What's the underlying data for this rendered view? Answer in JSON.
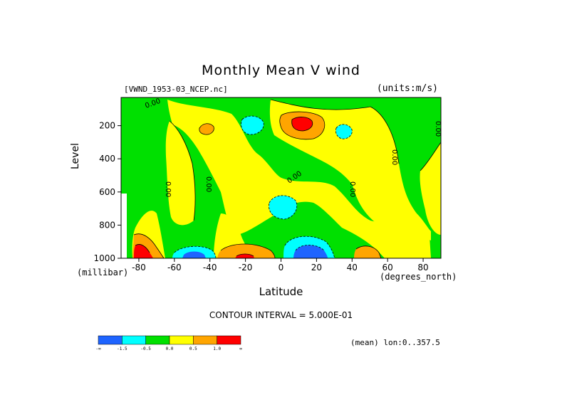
{
  "chart_data": {
    "type": "heatmap",
    "title": "Monthly Mean V wind",
    "dataset": "[VWND_1953-03_NCEP.nc]",
    "units": "(units:m/s)",
    "xlabel": "Latitude",
    "x_unit": "(degrees_north)",
    "ylabel": "Level",
    "y_unit": "(millibar)",
    "xlim": [
      -90,
      90
    ],
    "ylim": [
      1000,
      30
    ],
    "x_ticks": [
      -80,
      -60,
      -40,
      -20,
      0,
      20,
      40,
      60,
      80
    ],
    "y_ticks": [
      200,
      400,
      600,
      800,
      1000
    ],
    "contour_interval": "CONTOUR INTERVAL = 5.000E-01",
    "mean_note": "(mean) lon:0..357.5",
    "contour_label": "0.00",
    "colorbar": {
      "colors": [
        "#1e64ff",
        "#00ffff",
        "#00e000",
        "#ffff00",
        "#ffa500",
        "#ff0000"
      ],
      "labels": [
        "-∞",
        "-1.5",
        "-0.5",
        "0.0",
        "0.5",
        "1.0",
        "∞"
      ]
    },
    "features": [
      {
        "lat": 12,
        "level": 155,
        "value": 1.3,
        "sign": "positive"
      },
      {
        "lat": -40,
        "level": 180,
        "value": 0.7,
        "sign": "positive"
      },
      {
        "lat": -20,
        "level": 170,
        "value": -0.8,
        "sign": "negative"
      },
      {
        "lat": 28,
        "level": 185,
        "value": -0.8,
        "sign": "negative"
      },
      {
        "lat": 5,
        "level": 640,
        "value": -0.9,
        "sign": "negative"
      },
      {
        "lat": 12,
        "level": 960,
        "value": -2.0,
        "sign": "negative"
      },
      {
        "lat": -45,
        "level": 965,
        "value": -1.3,
        "sign": "negative"
      },
      {
        "lat": -22,
        "level": 965,
        "value": 1.2,
        "sign": "positive"
      },
      {
        "lat": -84,
        "level": 960,
        "value": 1.8,
        "sign": "positive"
      },
      {
        "lat": 45,
        "level": 965,
        "value": 0.6,
        "sign": "positive"
      }
    ]
  }
}
